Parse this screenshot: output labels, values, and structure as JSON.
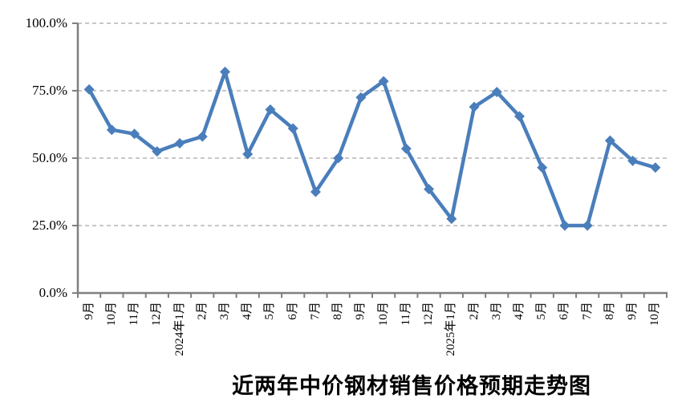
{
  "chart_data": {
    "type": "line",
    "title": "近两年中价钢材销售价格预期走势图",
    "categories": [
      "9月",
      "10月",
      "11月",
      "12月",
      "2024年1月",
      "2月",
      "3月",
      "4月",
      "5月",
      "6月",
      "7月",
      "8月",
      "9月",
      "10月",
      "11月",
      "12月",
      "2025年1月",
      "2月",
      "3月",
      "4月",
      "5月",
      "6月",
      "7月",
      "8月",
      "9月",
      "10月"
    ],
    "values": [
      75.5,
      60.5,
      59.0,
      52.5,
      55.5,
      58.0,
      82.0,
      51.5,
      68.0,
      61.0,
      37.5,
      50.0,
      72.5,
      78.5,
      53.5,
      38.5,
      27.5,
      69.0,
      74.5,
      65.5,
      46.5,
      25.0,
      25.0,
      56.5,
      49.0,
      46.5
    ],
    "unit": "%",
    "y_tick_labels": [
      "0.0%",
      "25.0%",
      "50.0%",
      "75.0%",
      "100.0%"
    ],
    "y_tick_values": [
      0,
      25,
      50,
      75,
      100
    ],
    "ylim": [
      0,
      100
    ],
    "grid": "horizontal-dashed",
    "legend": "none",
    "marker": "diamond",
    "colors": {
      "line": "#4A7EBB",
      "marker": "#4A7EBB",
      "axis": "#7F7F7F",
      "gridline": "#A6A6A6",
      "text": "#000000",
      "background": "#FFFFFF"
    }
  }
}
